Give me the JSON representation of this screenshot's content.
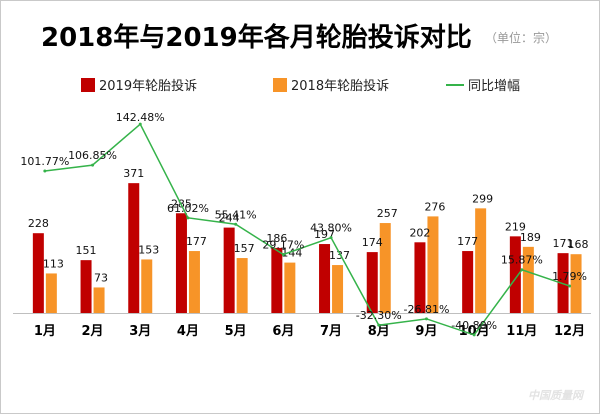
{
  "title": "2018年与2019年各月轮胎投诉对比",
  "unit": "（单位：宗）",
  "colors": {
    "s2019": "#c00000",
    "s2018": "#f79428",
    "line": "#35b34a"
  },
  "chart_data": {
    "type": "bar",
    "title": "2018年与2019年各月轮胎投诉对比",
    "unit": "（单位：宗）",
    "categories": [
      "1月",
      "2月",
      "3月",
      "4月",
      "5月",
      "6月",
      "7月",
      "8月",
      "9月",
      "10月",
      "11月",
      "12月"
    ],
    "series": [
      {
        "name": "2019年轮胎投诉",
        "type": "bar",
        "values": [
          228,
          151,
          371,
          285,
          244,
          186,
          197,
          174,
          202,
          177,
          219,
          171
        ]
      },
      {
        "name": "2018年轮胎投诉",
        "type": "bar",
        "values": [
          113,
          73,
          153,
          177,
          157,
          144,
          137,
          257,
          276,
          299,
          189,
          168
        ]
      },
      {
        "name": "同比增幅",
        "type": "line",
        "values": [
          101.77,
          106.85,
          142.48,
          61.02,
          55.41,
          29.17,
          43.8,
          -32.3,
          -26.81,
          -40.8,
          15.87,
          1.79
        ],
        "labels": [
          "101.77%",
          "106.85%",
          "142.48%",
          "61.02%",
          "55.41%",
          "29.17%",
          "43.80%",
          "-32.30%",
          "-26.81%",
          "-40.80%",
          "15.87%",
          "1.79%"
        ]
      }
    ],
    "legend": "top",
    "xlabel": "",
    "ylabel": ""
  }
}
